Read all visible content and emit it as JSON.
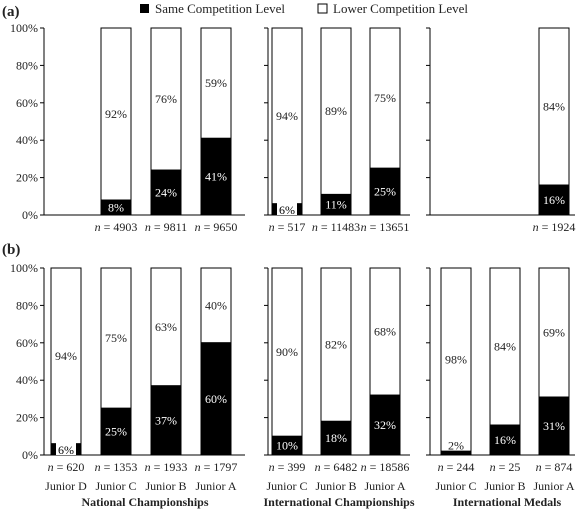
{
  "legend": [
    {
      "label": "Same Competition Level",
      "color": "#000000"
    },
    {
      "label": "Lower Competition Level",
      "color": "#ffffff"
    }
  ],
  "chart_data": [
    {
      "type": "bar",
      "stacked": true,
      "panel_label": "(a)",
      "ylim": [
        0,
        100
      ],
      "yticks": [
        "0%",
        "20%",
        "40%",
        "60%",
        "80%",
        "100%"
      ],
      "groups": [
        {
          "title": "National Championships",
          "categories": [
            "Junior D",
            "Junior C",
            "Junior B",
            "Junior A"
          ],
          "same": [
            null,
            8,
            24,
            41
          ],
          "lower": [
            null,
            92,
            76,
            59
          ],
          "same_labels": [
            null,
            "8%",
            "24%",
            "41%"
          ],
          "lower_labels": [
            null,
            "92%",
            "76%",
            "59%"
          ],
          "n": [
            null,
            "n = 4903",
            "n = 9811",
            "n = 9650"
          ]
        },
        {
          "title": "International Championships",
          "categories": [
            "Junior C",
            "Junior B",
            "Junior A"
          ],
          "same": [
            6,
            11,
            25
          ],
          "lower": [
            94,
            89,
            75
          ],
          "same_labels": [
            "6%",
            "11%",
            "25%"
          ],
          "lower_labels": [
            "94%",
            "89%",
            "75%"
          ],
          "n": [
            "n = 517",
            "n = 11483",
            "n = 13651"
          ]
        },
        {
          "title": "International Medals",
          "categories": [
            "Junior C",
            "Junior B",
            "Junior A"
          ],
          "same": [
            null,
            null,
            16
          ],
          "lower": [
            null,
            null,
            84
          ],
          "same_labels": [
            null,
            null,
            "16%"
          ],
          "lower_labels": [
            null,
            null,
            "84%"
          ],
          "n": [
            null,
            null,
            "n = 1924"
          ]
        }
      ]
    },
    {
      "type": "bar",
      "stacked": true,
      "panel_label": "(b)",
      "ylim": [
        0,
        100
      ],
      "yticks": [
        "0%",
        "20%",
        "40%",
        "60%",
        "80%",
        "100%"
      ],
      "groups": [
        {
          "title": "National Championships",
          "categories": [
            "Junior D",
            "Junior C",
            "Junior B",
            "Junior A"
          ],
          "same": [
            6,
            25,
            37,
            60
          ],
          "lower": [
            94,
            75,
            63,
            40
          ],
          "same_labels": [
            "6%",
            "25%",
            "37%",
            "60%"
          ],
          "lower_labels": [
            "94%",
            "75%",
            "63%",
            "40%"
          ],
          "n": [
            "n = 620",
            "n = 1353",
            "n = 1933",
            "n = 1797"
          ]
        },
        {
          "title": "International Championships",
          "categories": [
            "Junior C",
            "Junior B",
            "Junior A"
          ],
          "same": [
            10,
            18,
            32
          ],
          "lower": [
            90,
            82,
            68
          ],
          "same_labels": [
            "10%",
            "18%",
            "32%"
          ],
          "lower_labels": [
            "90%",
            "82%",
            "68%"
          ],
          "n": [
            "n = 399",
            "n = 6482",
            "n = 18586"
          ]
        },
        {
          "title": "International Medals",
          "categories": [
            "Junior C",
            "Junior B",
            "Junior A"
          ],
          "same": [
            2,
            16,
            31
          ],
          "lower": [
            98,
            84,
            69
          ],
          "same_labels": [
            "2%",
            "16%",
            "31%"
          ],
          "lower_labels": [
            "98%",
            "84%",
            "69%"
          ],
          "n": [
            "n = 244",
            "n = 25",
            "n = 874"
          ]
        }
      ]
    }
  ]
}
